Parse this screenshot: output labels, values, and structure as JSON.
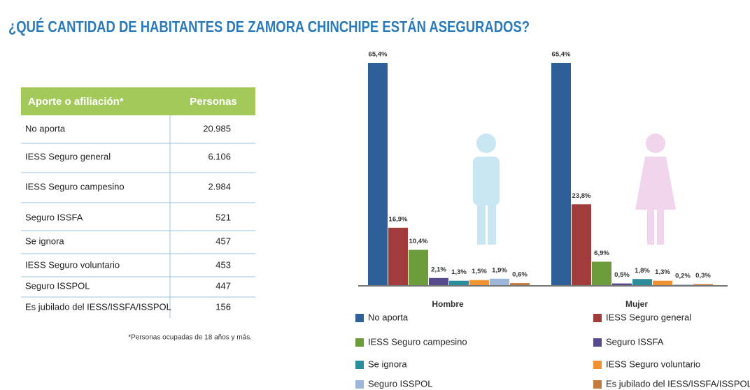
{
  "title": "¿QUÉ CANTIDAD DE HABITANTES DE ZAMORA CHINCHIPE ESTÁN ASEGURADOS?",
  "table": {
    "headers": [
      "Aporte  o afiliación*",
      "Personas"
    ],
    "rows": [
      [
        "No aporta",
        "20.985"
      ],
      [
        "IESS Seguro general",
        "6.106"
      ],
      [
        "IESS Seguro campesino",
        "2.984"
      ],
      [
        "Seguro ISSFA",
        "521"
      ],
      [
        "Se ignora",
        "457"
      ],
      [
        "IESS Seguro voluntario",
        "453"
      ],
      [
        "Seguro ISSPOL",
        "447"
      ],
      [
        "Es jubilado del IESS/ISSFA/ISSPOL",
        "156"
      ]
    ],
    "footnote": "*Personas ocupadas de 18 años y más."
  },
  "chart_data": {
    "type": "bar",
    "categories": [
      "Hombre",
      "Mujer"
    ],
    "series": [
      {
        "name": "No aporta",
        "color": "#2f5f98",
        "values": [
          65.4,
          65.4
        ],
        "value_labels": [
          "65,4%",
          "65,4%"
        ]
      },
      {
        "name": "IESS Seguro general",
        "color": "#a23b3b",
        "values": [
          16.9,
          23.8
        ],
        "value_labels": [
          "16,9%",
          "23,8%"
        ]
      },
      {
        "name": "IESS Seguro campesino",
        "color": "#6b9b3a",
        "values": [
          10.4,
          6.9
        ],
        "value_labels": [
          "10,4%",
          "6,9%"
        ]
      },
      {
        "name": "Seguro ISSFA",
        "color": "#574a8c",
        "values": [
          2.1,
          0.5
        ],
        "value_labels": [
          "2,1%",
          "0,5%"
        ]
      },
      {
        "name": "Se ignora",
        "color": "#2b8c9c",
        "values": [
          1.3,
          1.8
        ],
        "value_labels": [
          "1,3%",
          "1,8%"
        ]
      },
      {
        "name": "IESS Seguro voluntario",
        "color": "#f0922f",
        "values": [
          1.5,
          1.3
        ],
        "value_labels": [
          "1,5%",
          "1,3%"
        ]
      },
      {
        "name": "Seguro ISSPOL",
        "color": "#9db6d9",
        "values": [
          1.9,
          0.2
        ],
        "value_labels": [
          "1,9%",
          "0,2%"
        ]
      },
      {
        "name": "Es jubilado del IESS/ISSFA/ISSPOL",
        "color": "#c47a3c",
        "values": [
          0.6,
          0.3
        ],
        "value_labels": [
          "0,6%",
          "0,3%"
        ]
      }
    ]
  }
}
